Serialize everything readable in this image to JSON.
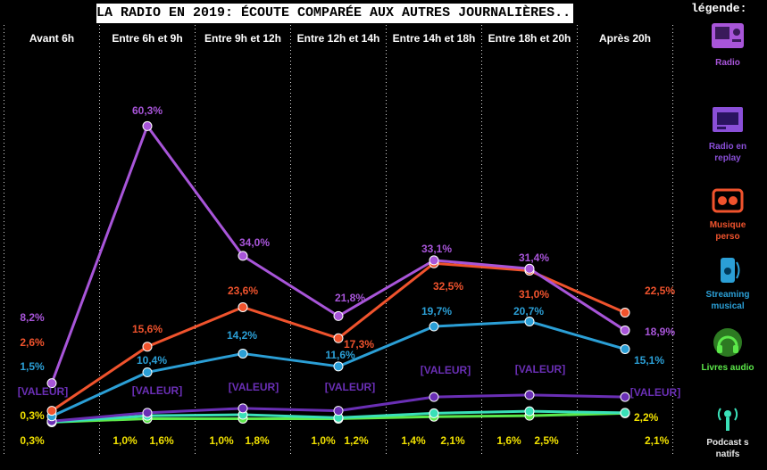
{
  "header": {
    "title": "LA RADIO EN 2019: ÉCOUTE COMPARÉE AUX AUTRES JOURNALIÈRES...",
    "legend_title": "légende:"
  },
  "legend": [
    {
      "label": "Radio",
      "color": "#a855d9",
      "icon": "radio-icon"
    },
    {
      "label": "Radio en replay",
      "color": "#8a4fd8",
      "icon": "radio-replay-icon"
    },
    {
      "label": "Musique perso",
      "color": "#f0532d",
      "icon": "music-icon"
    },
    {
      "label": "Streaming musical",
      "color": "#2b9fd6",
      "icon": "streaming-icon"
    },
    {
      "label": "Livres audio",
      "color": "#5ce84a",
      "icon": "headphones-icon"
    },
    {
      "label": "Podcast s natifs",
      "color": "#3ae0b8",
      "icon": "podcast-icon"
    }
  ],
  "chart_data": {
    "type": "line",
    "categories": [
      "Avant 6h",
      "Entre 6h et 9h",
      "Entre 9h et 12h",
      "Entre 12h et 14h",
      "Entre 14h et 18h",
      "Entre 18h et 20h",
      "Après 20h"
    ],
    "ylim": [
      0,
      62
    ],
    "grid": "vertical dotted",
    "series": [
      {
        "name": "Radio",
        "color": "#a855d9",
        "values": [
          8.2,
          60.3,
          34.0,
          21.8,
          33.1,
          31.4,
          18.9
        ],
        "labels": [
          "8,2%",
          "60,3%",
          "34,0%",
          "21,8%",
          "33,1%",
          "31,4%",
          "18,9%"
        ]
      },
      {
        "name": "Musique perso",
        "color": "#f0532d",
        "values": [
          2.6,
          15.6,
          23.6,
          17.3,
          32.5,
          31.0,
          22.5
        ],
        "labels": [
          "2,6%",
          "15,6%",
          "23,6%",
          "17,3%",
          "32,5%",
          "31,0%",
          "22,5%"
        ]
      },
      {
        "name": "Streaming musical",
        "color": "#2b9fd6",
        "values": [
          1.5,
          10.4,
          14.2,
          11.6,
          19.7,
          20.7,
          15.1
        ],
        "labels": [
          "1,5%",
          "10,4%",
          "14,2%",
          "11,6%",
          "19,7%",
          "20,7%",
          "15,1%"
        ]
      },
      {
        "name": "Radio en replay",
        "color": "#6a2fb5",
        "values": [
          0.5,
          2.2,
          3.1,
          2.6,
          5.4,
          5.8,
          5.4
        ],
        "labels": [
          "[VALEUR]",
          "[VALEUR]",
          "[VALEUR]",
          "[VALEUR]",
          "[VALEUR]",
          "[VALEUR]",
          "[VALEUR]"
        ]
      },
      {
        "name": "Livres audio",
        "color": "#5ce84a",
        "values": [
          0.3,
          1.0,
          1.0,
          1.0,
          1.4,
          1.6,
          2.1
        ],
        "labels": [
          "0,3%",
          "1,0%",
          "1,0%",
          "1,0%",
          "1,4%",
          "1,6%",
          "2,1%"
        ]
      },
      {
        "name": "Podcasts natifs",
        "color": "#3ae0b8",
        "values": [
          0.3,
          1.6,
          1.8,
          1.2,
          2.1,
          2.5,
          2.2
        ],
        "labels": [
          "0,3%",
          "1,6%",
          "1,8%",
          "1,2%",
          "2,1%",
          "2,5%",
          "2,2%"
        ]
      }
    ]
  }
}
